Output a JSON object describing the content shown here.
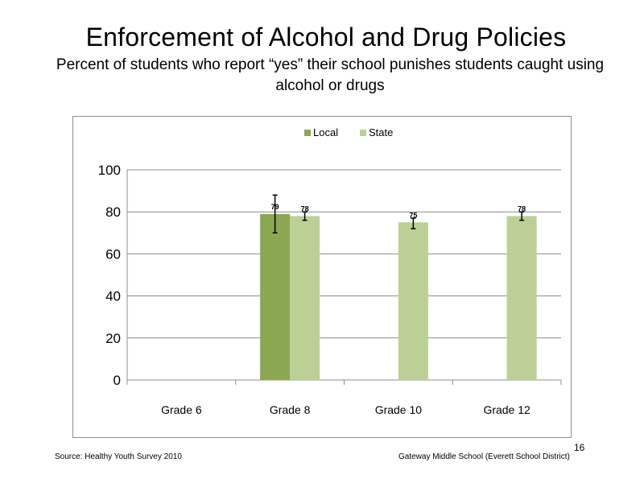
{
  "slide": {
    "title": "Enforcement of Alcohol and Drug Policies",
    "subtitle": "Percent of students who report “yes” their school punishes students caught using alcohol or drugs",
    "source": "Source: Healthy Youth Survey 2010",
    "school": "Gateway Middle  School (Everett School District)",
    "page_number": "16"
  },
  "chart_data": {
    "type": "bar",
    "title": "",
    "xlabel": "",
    "ylabel": "",
    "categories": [
      "Grade 6",
      "Grade 8",
      "Grade 10",
      "Grade 12"
    ],
    "ylim": [
      0,
      100
    ],
    "yticks": [
      0,
      20,
      40,
      60,
      80,
      100
    ],
    "grid": true,
    "legend_position": "top",
    "series": [
      {
        "name": "Local",
        "color": "#8ba752",
        "values": [
          null,
          79,
          null,
          null
        ],
        "labels": [
          null,
          "79",
          null,
          null
        ],
        "error_low": [
          null,
          70,
          null,
          null
        ],
        "error_high": [
          null,
          88,
          null,
          null
        ]
      },
      {
        "name": "State",
        "color": "#bccf95",
        "values": [
          null,
          78,
          75,
          78
        ],
        "labels": [
          null,
          "78",
          "75",
          "78"
        ],
        "error_low": [
          null,
          76,
          72,
          76
        ],
        "error_high": [
          null,
          80,
          77,
          80
        ]
      }
    ]
  }
}
